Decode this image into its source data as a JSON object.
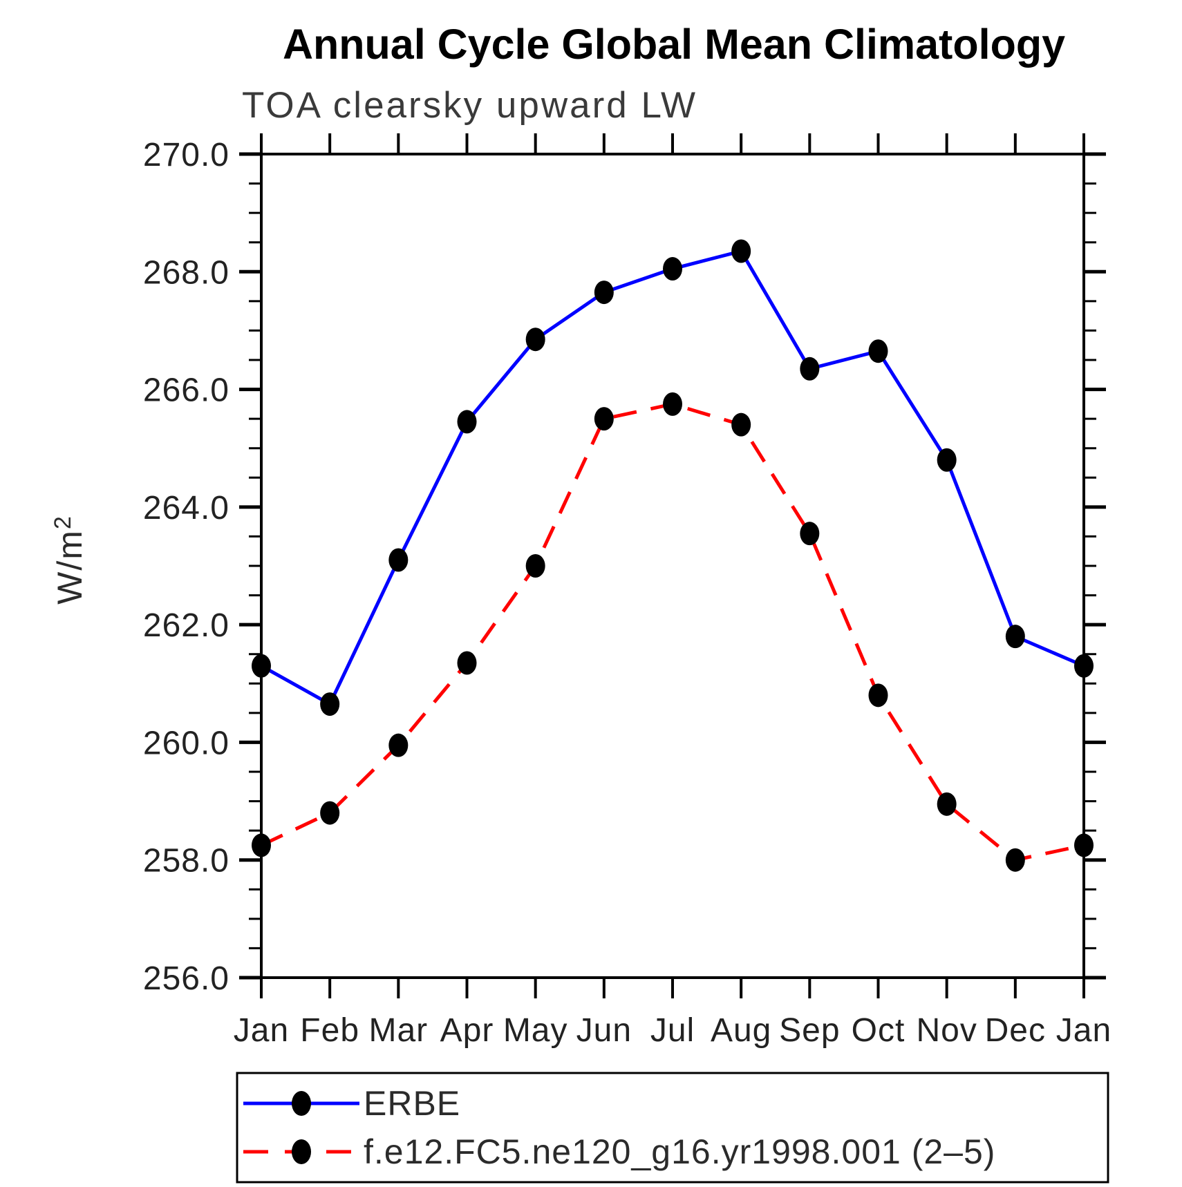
{
  "title": "Annual Cycle Global Mean Climatology",
  "subtitle": "TOA clearsky upward LW",
  "chart_data": {
    "type": "line",
    "title": "Annual Cycle Global Mean Climatology",
    "subtitle": "TOA clearsky upward LW",
    "ylabel_base": "W/m",
    "ylabel_exp": "2",
    "xlabel": "",
    "categories": [
      "Jan",
      "Feb",
      "Mar",
      "Apr",
      "May",
      "Jun",
      "Jul",
      "Aug",
      "Sep",
      "Oct",
      "Nov",
      "Dec",
      "Jan"
    ],
    "ylim": [
      256.0,
      270.0
    ],
    "y_major_step": 2.0,
    "y_minor_step": 0.5,
    "y_tick_decimals": 1,
    "grid": false,
    "legend_position": "bottom",
    "marker": {
      "shape": "filled-oval",
      "color": "#000000"
    },
    "series": [
      {
        "name": "ERBE",
        "color": "#0000ff",
        "line_style": "solid",
        "values": [
          261.3,
          260.65,
          263.1,
          265.45,
          266.85,
          267.65,
          268.05,
          268.35,
          266.35,
          266.65,
          264.8,
          261.8,
          261.3
        ]
      },
      {
        "name": "f.e12.FC5.ne120_g16.yr1998.001 (2–5)",
        "color": "#ff0000",
        "line_style": "dashed",
        "values": [
          258.25,
          258.8,
          259.95,
          261.35,
          263.0,
          265.5,
          265.75,
          265.4,
          263.55,
          260.8,
          258.95,
          258.0,
          258.25
        ]
      }
    ]
  }
}
